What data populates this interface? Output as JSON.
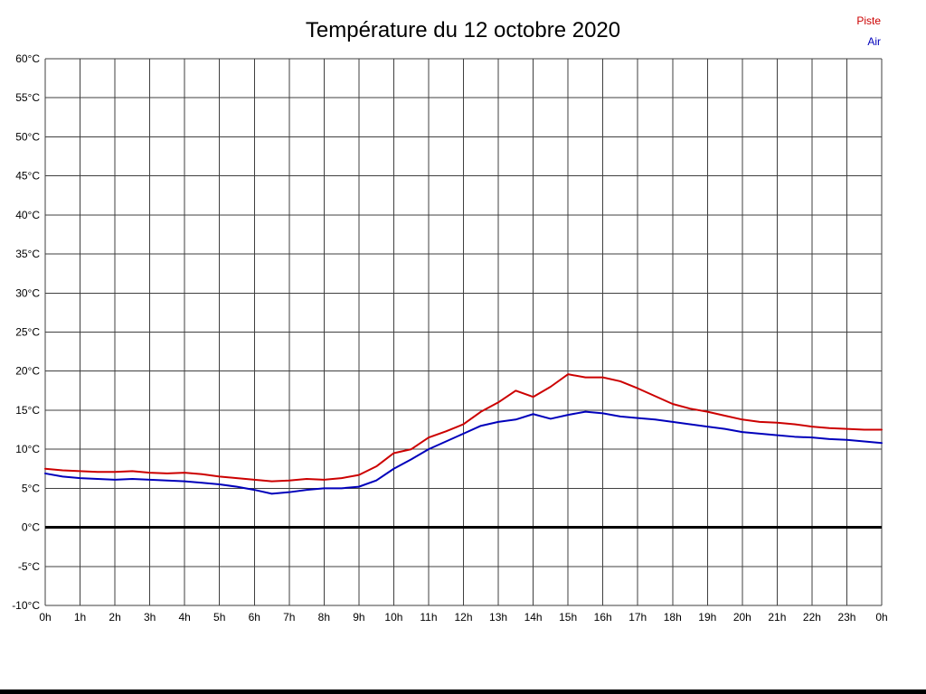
{
  "chart_data": {
    "type": "line",
    "title": "Température du 12 octobre 2020",
    "xlabel": "",
    "ylabel": "",
    "xlim": [
      0,
      24
    ],
    "ylim": [
      -10,
      60
    ],
    "y_step": 5,
    "grid": true,
    "grid_color": "#3f3f3f",
    "zero_line": {
      "value": 0,
      "color": "#000000",
      "width": 3
    },
    "x_tick_labels": [
      "0h",
      "1h",
      "2h",
      "3h",
      "4h",
      "5h",
      "6h",
      "7h",
      "8h",
      "9h",
      "10h",
      "11h",
      "12h",
      "13h",
      "14h",
      "15h",
      "16h",
      "17h",
      "18h",
      "19h",
      "20h",
      "21h",
      "22h",
      "23h",
      "0h"
    ],
    "y_tick_labels": [
      "60°C",
      "55°C",
      "50°C",
      "45°C",
      "40°C",
      "35°C",
      "30°C",
      "25°C",
      "20°C",
      "15°C",
      "10°C",
      "5°C",
      "0°C",
      "-5°C",
      "-10°C"
    ],
    "legend": [
      {
        "label": "Piste",
        "color": "#cc0000"
      },
      {
        "label": "Air",
        "color": "#0000bb"
      }
    ],
    "x_start": 0,
    "x_step": 0.5,
    "series": [
      {
        "name": "Piste",
        "color": "#cc0000",
        "values": [
          7.5,
          7.3,
          7.2,
          7.1,
          7.1,
          7.2,
          7.0,
          6.9,
          7.0,
          6.8,
          6.5,
          6.3,
          6.1,
          5.9,
          6.0,
          6.2,
          6.1,
          6.3,
          6.7,
          7.8,
          9.5,
          10.0,
          11.5,
          12.3,
          13.2,
          14.8,
          16.0,
          17.5,
          16.7,
          18.0,
          19.6,
          19.2,
          19.2,
          18.7,
          17.8,
          16.8,
          15.8,
          15.2,
          14.8,
          14.3,
          13.8,
          13.5,
          13.4,
          13.2,
          12.9,
          12.7,
          12.6,
          12.5,
          12.5
        ]
      },
      {
        "name": "Air",
        "color": "#0000bb",
        "values": [
          6.9,
          6.5,
          6.3,
          6.2,
          6.1,
          6.2,
          6.1,
          6.0,
          5.9,
          5.7,
          5.5,
          5.2,
          4.8,
          4.3,
          4.5,
          4.8,
          5.0,
          5.0,
          5.2,
          6.0,
          7.5,
          8.7,
          10.0,
          11.0,
          12.0,
          13.0,
          13.5,
          13.8,
          14.5,
          13.9,
          14.4,
          14.8,
          14.6,
          14.2,
          14.0,
          13.8,
          13.5,
          13.2,
          12.9,
          12.6,
          12.2,
          12.0,
          11.8,
          11.6,
          11.5,
          11.3,
          11.2,
          11.0,
          10.8
        ]
      }
    ]
  }
}
